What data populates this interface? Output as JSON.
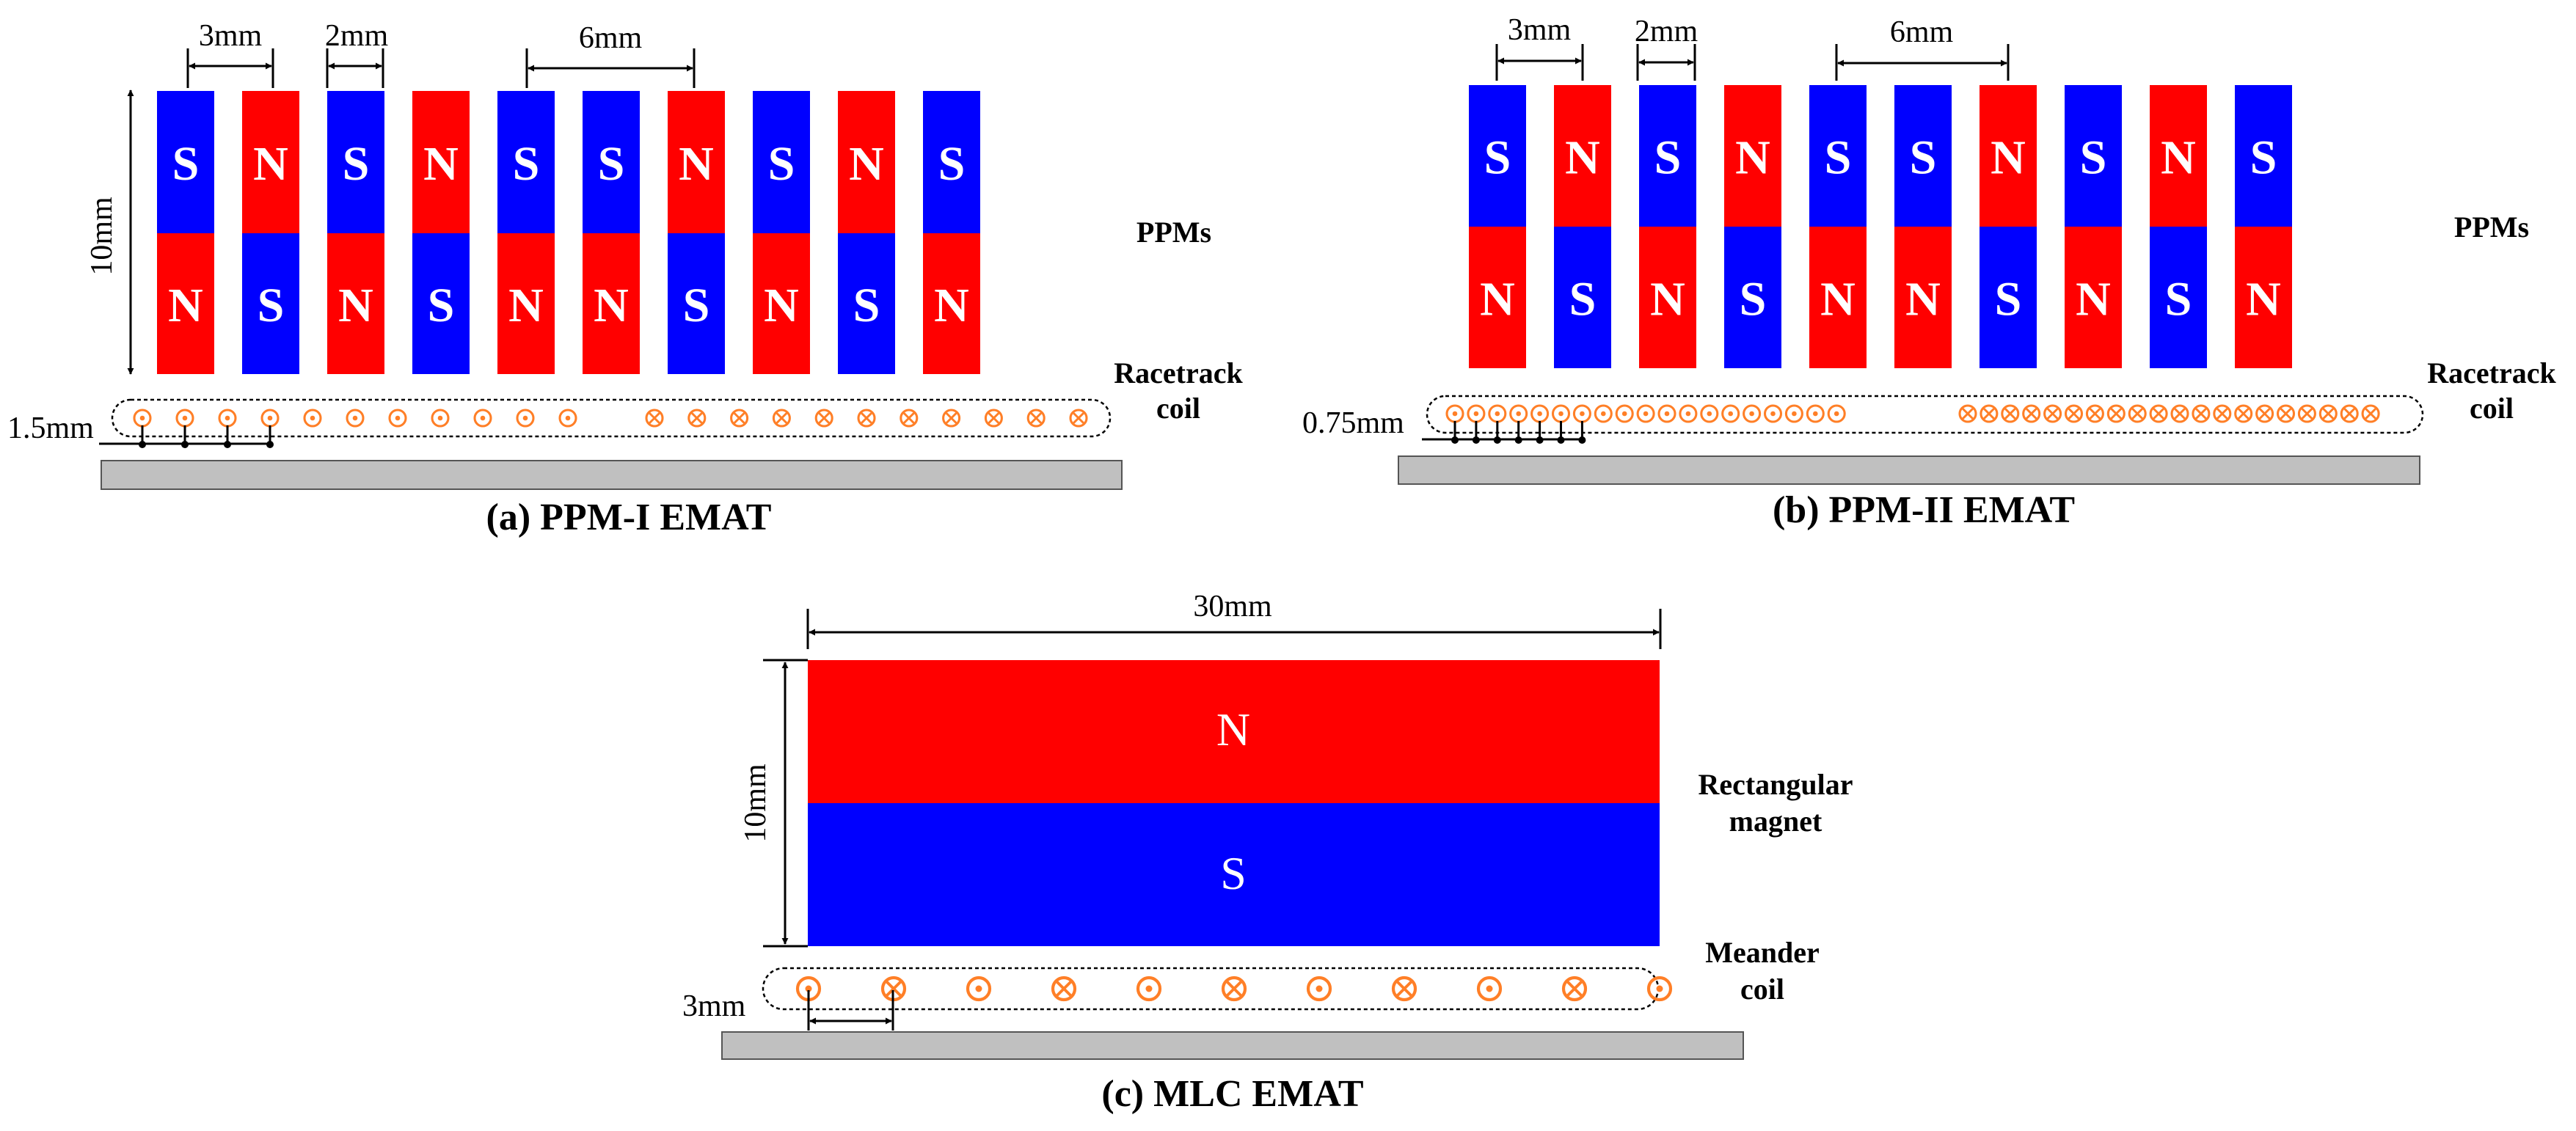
{
  "panels": {
    "a": {
      "caption": "(a) PPM-I EMAT",
      "label_ppms": "PPMs",
      "label_coil_line1": "Racetrack",
      "label_coil_line2": "coil",
      "dim_height": "10mm",
      "dim_pitch": "3mm",
      "dim_gap": "2mm",
      "dim_center_gap": "6mm",
      "dim_wire_pitch": "1.5mm",
      "magnet_top_poles": [
        "S",
        "N",
        "S",
        "N",
        "S",
        "S",
        "N",
        "S",
        "N",
        "S"
      ],
      "magnet_bottom_poles": [
        "N",
        "S",
        "N",
        "S",
        "N",
        "N",
        "S",
        "N",
        "S",
        "N"
      ],
      "wire_left_symbol": "dot",
      "wire_right_symbol": "cross",
      "wires_left_count": 11,
      "wires_right_count": 11,
      "pitch_tick_count": 4
    },
    "b": {
      "caption": "(b) PPM-II EMAT",
      "label_ppms": "PPMs",
      "label_coil_line1": "Racetrack",
      "label_coil_line2": "coil",
      "dim_pitch": "3mm",
      "dim_gap": "2mm",
      "dim_center_gap": "6mm",
      "dim_wire_pitch": "0.75mm",
      "magnet_top_poles": [
        "S",
        "N",
        "S",
        "N",
        "S",
        "S",
        "N",
        "S",
        "N",
        "S"
      ],
      "magnet_bottom_poles": [
        "N",
        "S",
        "N",
        "S",
        "N",
        "N",
        "S",
        "N",
        "S",
        "N"
      ],
      "wire_left_symbol": "dot",
      "wire_right_symbol": "cross",
      "wires_left_count": 19,
      "wires_right_count": 20,
      "pitch_tick_count": 7
    },
    "c": {
      "caption": "(c) MLC EMAT",
      "label_magnet_line1": "Rectangular",
      "label_magnet_line2": "magnet",
      "label_coil_line1": "Meander",
      "label_coil_line2": "coil",
      "dim_width": "30mm",
      "dim_height": "10mm",
      "dim_wire_pitch": "3mm",
      "pole_top": "N",
      "pole_bottom": "S",
      "wire_symbols": [
        "dot",
        "cross",
        "dot",
        "cross",
        "dot",
        "cross",
        "dot",
        "cross",
        "dot",
        "cross",
        "dot"
      ]
    }
  },
  "colors": {
    "north": "#ff0000",
    "south": "#0000ff",
    "wire": "#ff7f27",
    "plate_fill": "#c0c0c0",
    "plate_stroke": "#555555",
    "line": "#000000",
    "pole_text": "#ffffff"
  }
}
